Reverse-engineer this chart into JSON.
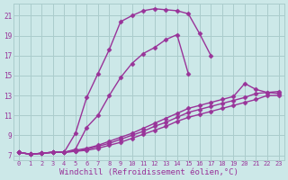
{
  "background_color": "#cce8e8",
  "grid_color": "#aacccc",
  "line_color": "#993399",
  "marker": "D",
  "markersize": 2.5,
  "linewidth": 1.0,
  "xlabel": "Windchill (Refroidissement éolien,°C)",
  "xlabel_fontsize": 6.5,
  "ylabel_ticks": [
    7,
    9,
    11,
    13,
    15,
    17,
    19,
    21
  ],
  "xlabel_ticks": [
    0,
    1,
    2,
    3,
    4,
    5,
    6,
    7,
    8,
    9,
    10,
    11,
    12,
    13,
    14,
    15,
    16,
    17,
    18,
    19,
    20,
    21,
    22,
    23
  ],
  "xlim": [
    -0.5,
    23.5
  ],
  "ylim": [
    6.5,
    22.2
  ],
  "curve1_x": [
    0,
    1,
    2,
    3,
    4,
    5,
    6,
    7,
    8,
    9,
    10,
    11,
    12,
    13,
    14,
    15,
    16,
    17
  ],
  "curve1_y": [
    7.3,
    7.1,
    7.2,
    7.3,
    7.3,
    9.2,
    12.8,
    15.2,
    17.6,
    20.4,
    21.0,
    21.5,
    21.7,
    21.6,
    21.5,
    21.2,
    19.2,
    17.0
  ],
  "curve2_x": [
    0,
    1,
    2,
    3,
    4,
    5,
    6,
    7,
    8,
    9,
    10,
    11,
    12,
    13,
    14,
    15
  ],
  "curve2_y": [
    7.3,
    7.1,
    7.2,
    7.3,
    7.3,
    7.6,
    9.8,
    11.0,
    13.0,
    14.8,
    16.2,
    17.2,
    17.8,
    18.6,
    19.1,
    15.2
  ],
  "curve3_x": [
    0,
    1,
    2,
    3,
    4,
    5,
    6,
    7,
    8,
    9,
    10,
    11,
    12,
    13,
    14,
    15,
    16,
    17,
    18,
    19,
    20,
    21,
    22,
    23
  ],
  "curve3_y": [
    7.3,
    7.1,
    7.2,
    7.3,
    7.3,
    7.5,
    7.7,
    8.0,
    8.4,
    8.8,
    9.2,
    9.7,
    10.2,
    10.7,
    11.2,
    11.7,
    12.0,
    12.3,
    12.6,
    12.9,
    14.2,
    13.6,
    13.3,
    13.4
  ],
  "curve4_x": [
    0,
    1,
    2,
    3,
    4,
    5,
    6,
    7,
    8,
    9,
    10,
    11,
    12,
    13,
    14,
    15,
    16,
    17,
    18,
    19,
    20,
    21,
    22,
    23
  ],
  "curve4_y": [
    7.3,
    7.1,
    7.2,
    7.3,
    7.3,
    7.4,
    7.6,
    7.9,
    8.2,
    8.6,
    9.0,
    9.4,
    9.9,
    10.3,
    10.8,
    11.3,
    11.6,
    11.9,
    12.2,
    12.5,
    12.8,
    13.2,
    13.3,
    13.2
  ],
  "curve5_x": [
    0,
    1,
    2,
    3,
    4,
    5,
    6,
    7,
    8,
    9,
    10,
    11,
    12,
    13,
    14,
    15,
    16,
    17,
    18,
    19,
    20,
    21,
    22,
    23
  ],
  "curve5_y": [
    7.3,
    7.1,
    7.2,
    7.3,
    7.3,
    7.4,
    7.5,
    7.7,
    8.0,
    8.3,
    8.7,
    9.1,
    9.5,
    9.9,
    10.4,
    10.8,
    11.1,
    11.4,
    11.7,
    12.0,
    12.3,
    12.6,
    13.0,
    13.0
  ]
}
